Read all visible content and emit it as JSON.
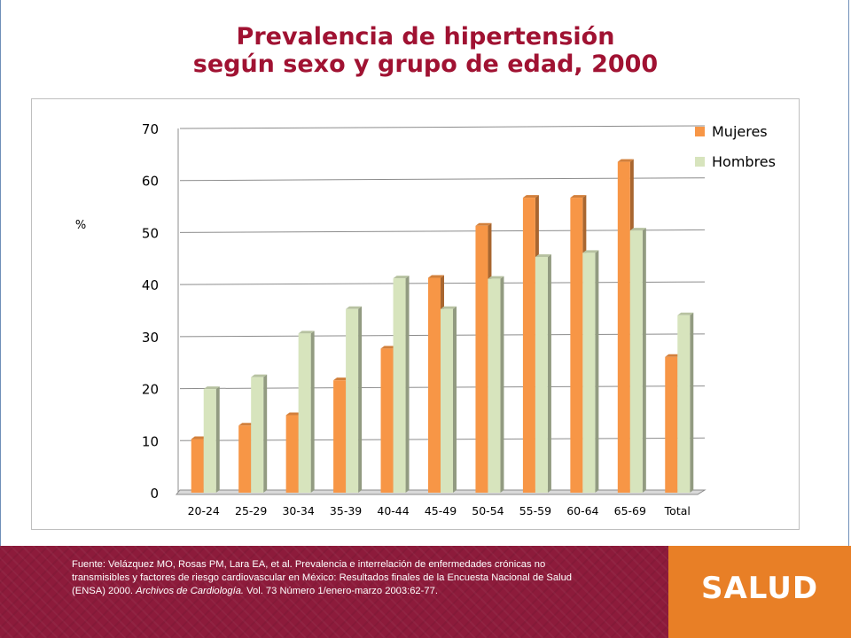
{
  "slide": {
    "title_line1": "Prevalencia de hipertensión",
    "title_line2": "según sexo y grupo de edad, 2000"
  },
  "footer": {
    "source_prefix": "Fuente: Velázquez MO, Rosas PM, Lara EA, et al. Prevalencia e interrelación de enfermedades crónicas no transmisibles y factores de riesgo cardiovascular en México: Resultados finales de la Encuesta Nacional de Salud (ENSA) 2000. ",
    "source_journal": "Archivos de Cardiología.",
    "source_suffix": " Vol. 73 Número 1/enero-marzo 2003:62-77.",
    "brand": "SALUD"
  },
  "colors": {
    "title": "#a01232",
    "mujeres": "#f79646",
    "hombres": "#d7e4bd",
    "footer": "#8b1a3a",
    "brand": "#e87f26"
  },
  "chart_data": {
    "type": "bar",
    "title": "",
    "ylabel": "%",
    "xlabel": "",
    "categories": [
      "20-24",
      "25-29",
      "30-34",
      "35-39",
      "40-44",
      "45-49",
      "50-54",
      "55-59",
      "60-64",
      "65-69",
      "Total"
    ],
    "series": [
      {
        "name": "Mujeres",
        "color": "#f79646",
        "values": [
          10.3,
          12.9,
          14.9,
          21.6,
          27.7,
          41.3,
          51.3,
          56.7,
          56.7,
          63.6,
          26.1
        ]
      },
      {
        "name": "Hombres",
        "color": "#d7e4bd",
        "values": [
          19.9,
          22.2,
          30.6,
          35.3,
          41.2,
          35.3,
          41.1,
          45.3,
          46.1,
          50.4,
          34.1
        ]
      }
    ],
    "ylim": [
      0,
      70
    ],
    "yticks": [
      0,
      10,
      20,
      30,
      40,
      50,
      60,
      70
    ],
    "grid": true,
    "legend_position": "top-right",
    "style": "3d-clustered-column"
  }
}
